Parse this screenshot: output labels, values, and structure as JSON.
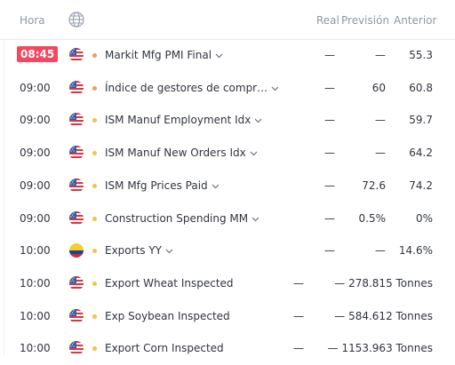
{
  "header": {
    "hora": "Hora",
    "real": "Real",
    "prevision": "Previsión",
    "anterior": "Anterior"
  },
  "colors": {
    "highlight_time": "#f2495f",
    "dot_orange": "#f39c50",
    "dot_yellow": "#f5c242",
    "dash": "#30343d"
  },
  "rows": [
    {
      "time": "08:45",
      "highlight": true,
      "flag": "us-flag-icon",
      "importance": "orange",
      "name": "Markit Mfg PMI Final",
      "real": "—",
      "prevision": "—",
      "anterior": "55.3"
    },
    {
      "time": "09:00",
      "highlight": false,
      "flag": "us-flag-icon",
      "importance": "orange",
      "name": "Índice de gestores de compr…",
      "real": "—",
      "prevision": "60",
      "anterior": "60.8"
    },
    {
      "time": "09:00",
      "highlight": false,
      "flag": "us-flag-icon",
      "importance": "yellow",
      "name": "ISM Manuf Employment Idx",
      "real": "—",
      "prevision": "—",
      "anterior": "59.7"
    },
    {
      "time": "09:00",
      "highlight": false,
      "flag": "us-flag-icon",
      "importance": "yellow",
      "name": "ISM Manuf New Orders Idx",
      "real": "—",
      "prevision": "—",
      "anterior": "64.2"
    },
    {
      "time": "09:00",
      "highlight": false,
      "flag": "us-flag-icon",
      "importance": "yellow",
      "name": "ISM Mfg Prices Paid",
      "real": "—",
      "prevision": "72.6",
      "anterior": "74.2"
    },
    {
      "time": "09:00",
      "highlight": false,
      "flag": "us-flag-icon",
      "importance": "yellow",
      "name": "Construction Spending MM",
      "real": "—",
      "prevision": "0.5%",
      "anterior": "0%"
    },
    {
      "time": "10:00",
      "highlight": false,
      "flag": "co-flag-icon",
      "importance": "yellow",
      "name": "Exports YY",
      "real": "—",
      "prevision": "—",
      "anterior": "14.6%"
    },
    {
      "time": "10:00",
      "highlight": false,
      "flag": "us-flag-icon",
      "importance": "yellow",
      "name": "Export Wheat Inspected",
      "real": "—",
      "prevision": "— 278.815 Tonnes",
      "anterior": ""
    },
    {
      "time": "10:00",
      "highlight": false,
      "flag": "us-flag-icon",
      "importance": "yellow",
      "name": "Exp Soybean Inspected",
      "real": "—",
      "prevision": "— 584.612 Tonnes",
      "anterior": ""
    },
    {
      "time": "10:00",
      "highlight": false,
      "flag": "us-flag-icon",
      "importance": "yellow",
      "name": "Export Corn Inspected",
      "real": "—",
      "prevision": "— 1153.963 Tonnes",
      "anterior": ""
    }
  ]
}
